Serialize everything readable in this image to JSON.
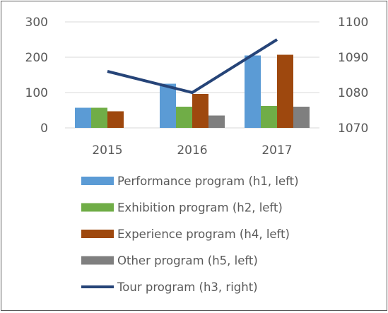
{
  "chart_data": {
    "type": "bar",
    "categories": [
      "2015",
      "2016",
      "2017"
    ],
    "series": [
      {
        "name": "Performance program (h1, left)",
        "type": "bar",
        "axis": "left",
        "color": "#5B9BD5",
        "values": [
          57,
          125,
          205
        ]
      },
      {
        "name": "Exhibition program (h2, left)",
        "type": "bar",
        "axis": "left",
        "color": "#70AD47",
        "values": [
          57,
          60,
          62
        ]
      },
      {
        "name": "Experience program (h4, left)",
        "type": "bar",
        "axis": "left",
        "color": "#9E480E",
        "values": [
          47,
          96,
          207
        ]
      },
      {
        "name": "Other program (h5, left)",
        "type": "bar",
        "axis": "left",
        "color": "#7F7F7F",
        "values": [
          0,
          35,
          60
        ]
      },
      {
        "name": "Tour program (h3, right)",
        "type": "line",
        "axis": "right",
        "color": "#264478",
        "values": [
          1086,
          1080,
          1095
        ]
      }
    ],
    "left_axis": {
      "ylim": [
        0,
        300
      ],
      "ticks": [
        "0",
        "100",
        "200",
        "300"
      ]
    },
    "right_axis": {
      "ylim": [
        1070,
        1100
      ],
      "ticks": [
        "1070",
        "1080",
        "1090",
        "1100"
      ]
    },
    "grid": true,
    "legend_position": "bottom"
  }
}
